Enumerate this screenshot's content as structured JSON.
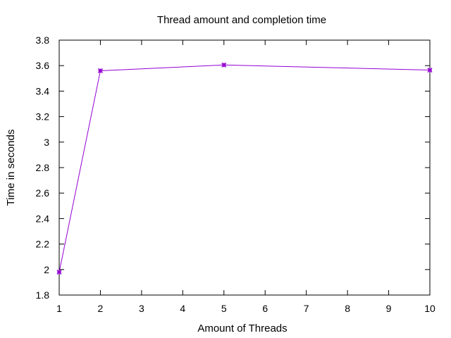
{
  "chart_data": {
    "type": "line",
    "title": "Thread amount and completion time",
    "xlabel": "Amount of Threads",
    "ylabel": "Time in seconds",
    "xlim": [
      1,
      10
    ],
    "ylim": [
      1.8,
      3.8
    ],
    "x_ticks": [
      "1",
      "2",
      "3",
      "4",
      "5",
      "6",
      "7",
      "8",
      "9",
      "10"
    ],
    "y_ticks": [
      "1.8",
      "2",
      "2.2",
      "2.4",
      "2.6",
      "2.8",
      "3",
      "3.2",
      "3.4",
      "3.6",
      "3.8"
    ],
    "grid": false,
    "legend": "none",
    "series": [
      {
        "color": "#9400d3",
        "x": [
          1,
          2,
          5,
          10
        ],
        "y": [
          1.98,
          3.56,
          3.605,
          3.565
        ]
      }
    ]
  }
}
